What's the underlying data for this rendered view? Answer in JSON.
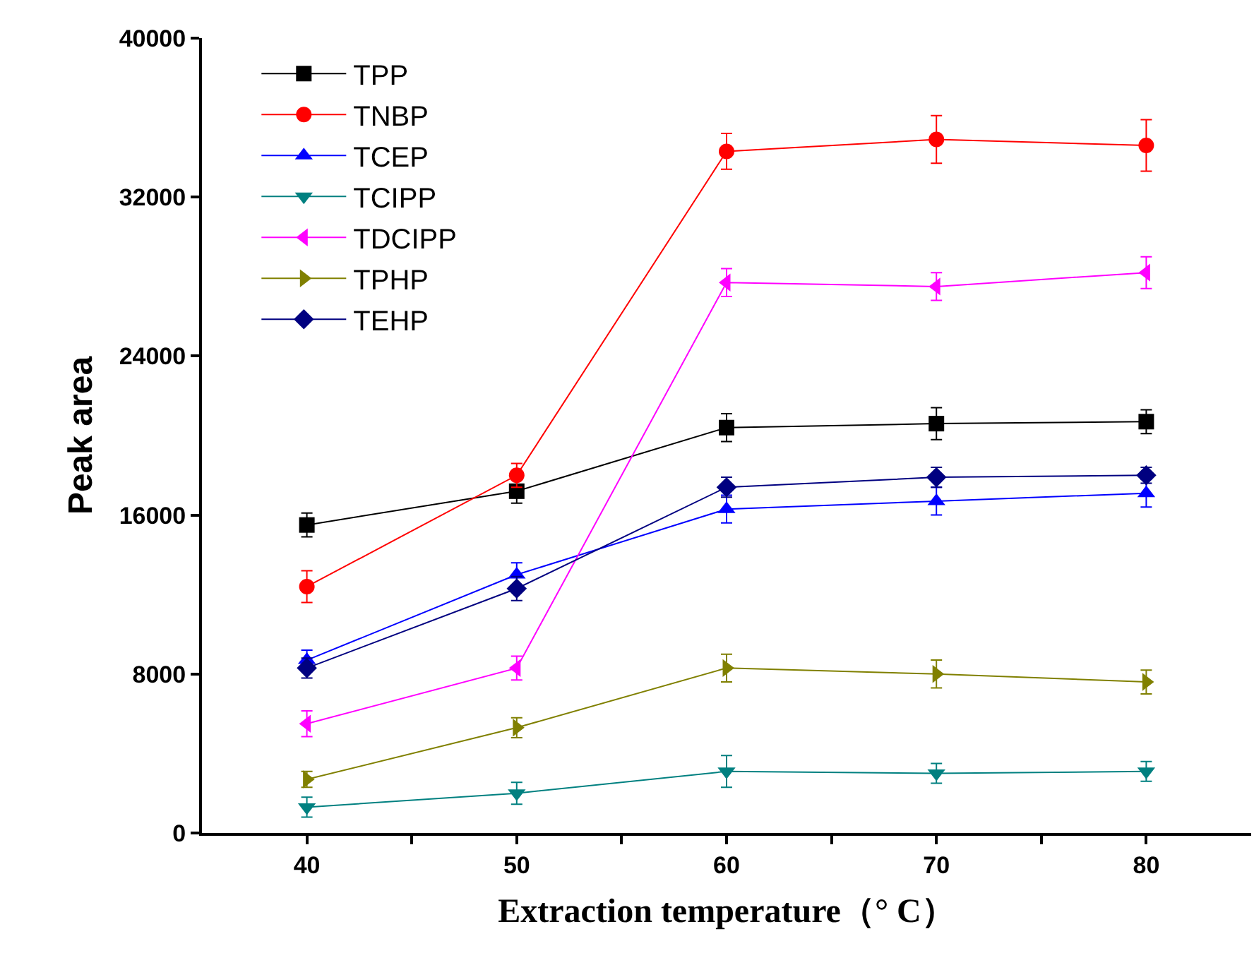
{
  "chart_data": {
    "type": "line",
    "xlabel": "Extraction temperature（° C）",
    "ylabel": "Peak area",
    "x": [
      40,
      50,
      60,
      70,
      80
    ],
    "xlim": [
      35,
      85
    ],
    "xticks": [
      40,
      {
        "value": 45,
        "label": null
      },
      50,
      {
        "value": 55,
        "label": null
      },
      60,
      {
        "value": 65,
        "label": null
      },
      70,
      {
        "value": 75,
        "label": null
      },
      80
    ],
    "ylim": [
      0,
      40000
    ],
    "yticks": [
      0,
      8000,
      16000,
      24000,
      32000,
      40000
    ],
    "grid": false,
    "legend": "top left",
    "line_style": "solid",
    "series": [
      {
        "name": "TPP",
        "color": "#000000",
        "marker": "square",
        "values": [
          15500,
          17200,
          20400,
          20600,
          20700
        ],
        "errors": [
          600,
          600,
          700,
          800,
          600
        ]
      },
      {
        "name": "TNBP",
        "color": "#ff0000",
        "marker": "circle",
        "values": [
          12400,
          18000,
          34300,
          34900,
          34600
        ],
        "errors": [
          800,
          600,
          900,
          1200,
          1300
        ]
      },
      {
        "name": "TCEP",
        "color": "#0000ff",
        "marker": "triangle-up",
        "values": [
          8700,
          13000,
          16300,
          16700,
          17100
        ],
        "errors": [
          500,
          600,
          700,
          700,
          700
        ]
      },
      {
        "name": "TCIPP",
        "color": "#008080",
        "marker": "triangle-down",
        "values": [
          1300,
          2000,
          3100,
          3000,
          3100
        ],
        "errors": [
          500,
          550,
          800,
          500,
          500
        ]
      },
      {
        "name": "TDCIPP",
        "color": "#ff00ff",
        "marker": "triangle-left",
        "values": [
          5500,
          8300,
          27700,
          27500,
          28200
        ],
        "errors": [
          650,
          600,
          700,
          700,
          800
        ]
      },
      {
        "name": "TPHP",
        "color": "#808000",
        "marker": "triangle-right",
        "values": [
          2700,
          5300,
          8300,
          8000,
          7600
        ],
        "errors": [
          400,
          500,
          700,
          700,
          600
        ]
      },
      {
        "name": "TEHP",
        "color": "#000080",
        "marker": "diamond",
        "values": [
          8300,
          12300,
          17400,
          17900,
          18000
        ],
        "errors": [
          500,
          600,
          500,
          500,
          400
        ]
      }
    ]
  }
}
